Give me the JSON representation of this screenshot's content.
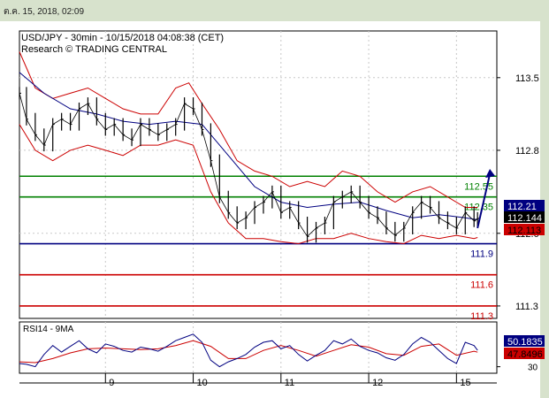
{
  "timestamp_bar": "ต.ค. 15, 2018, 02:09",
  "header": {
    "line1": "USD/JPY - 30min - 10/15/2018 04:08:38 (CET)",
    "line2": "Research © TRADING CENTRAL"
  },
  "chart_data": [
    {
      "type": "line",
      "panel": "price",
      "instrument": "USD/JPY",
      "timeframe": "30min",
      "y_ticks": [
        113.5,
        112.8,
        112.0,
        111.3
      ],
      "y_tick_labels": [
        "113.5",
        "112.8",
        "112.0",
        "111.3"
      ],
      "ylim": [
        111.18,
        113.95
      ],
      "x_tick_labels": [
        "9",
        "10",
        "11",
        "12",
        "15"
      ],
      "x_ticks_day": [
        8.5,
        9.5,
        10.5,
        11.5,
        12.5
      ],
      "xlim_day": [
        7.52,
        12.96
      ],
      "grid": true,
      "levels": [
        {
          "value": 112.55,
          "label": "112.55",
          "color": "#008000"
        },
        {
          "value": 112.35,
          "label": "112.35",
          "color": "#008000"
        },
        {
          "value": 111.9,
          "label": "111.9",
          "color": "#000080"
        },
        {
          "value": 111.6,
          "label": "111.6",
          "color": "#cc0000"
        },
        {
          "value": 111.3,
          "label": "111.3",
          "color": "#cc0000"
        }
      ],
      "price_tags": [
        {
          "value": 112.21,
          "label": "112.21",
          "bg": "#000080",
          "fg": "#ffffff"
        },
        {
          "value": 112.144,
          "label": "112.144",
          "bg": "#000000",
          "fg": "#ffffff"
        },
        {
          "value": 112.113,
          "label": "112.113",
          "bg": "#cc0000",
          "fg": "#000000"
        }
      ],
      "forecast_arrow": {
        "from": [
          12.74,
          112.05
        ],
        "to": [
          12.88,
          112.62
        ],
        "color": "#000080"
      },
      "close_series": {
        "x": [
          7.52,
          7.6,
          7.7,
          7.8,
          7.9,
          8.0,
          8.1,
          8.2,
          8.3,
          8.4,
          8.5,
          8.6,
          8.7,
          8.8,
          8.9,
          9.0,
          9.1,
          9.2,
          9.3,
          9.4,
          9.5,
          9.6,
          9.7,
          9.8,
          9.9,
          10.0,
          10.1,
          10.2,
          10.3,
          10.4,
          10.5,
          10.6,
          10.7,
          10.8,
          10.9,
          11.0,
          11.1,
          11.2,
          11.3,
          11.4,
          11.5,
          11.6,
          11.7,
          11.8,
          11.9,
          12.0,
          12.1,
          12.2,
          12.3,
          12.4,
          12.5,
          12.6,
          12.7,
          12.74
        ],
        "y": [
          113.35,
          113.1,
          112.95,
          112.85,
          113.05,
          113.1,
          113.05,
          113.2,
          113.25,
          113.1,
          113.0,
          113.05,
          112.95,
          112.9,
          113.05,
          113.0,
          112.95,
          113.0,
          113.05,
          113.25,
          113.2,
          113.0,
          112.7,
          112.35,
          112.2,
          112.1,
          112.15,
          112.25,
          112.3,
          112.4,
          112.2,
          112.25,
          112.1,
          111.97,
          112.05,
          112.1,
          112.3,
          112.35,
          112.4,
          112.3,
          112.2,
          112.15,
          112.05,
          111.98,
          112.05,
          112.2,
          112.3,
          112.25,
          112.15,
          112.1,
          112.05,
          112.2,
          112.12,
          112.144
        ]
      },
      "moving_average": {
        "x": [
          7.52,
          7.8,
          8.1,
          8.4,
          8.7,
          9.0,
          9.3,
          9.6,
          9.9,
          10.2,
          10.5,
          10.8,
          11.1,
          11.4,
          11.7,
          12.0,
          12.3,
          12.6,
          12.74
        ],
        "y": [
          113.55,
          113.35,
          113.2,
          113.15,
          113.08,
          113.05,
          113.08,
          113.05,
          112.75,
          112.45,
          112.3,
          112.25,
          112.28,
          112.3,
          112.22,
          112.15,
          112.18,
          112.15,
          112.13
        ]
      },
      "bollinger_upper": {
        "x": [
          7.52,
          7.7,
          7.9,
          8.1,
          8.3,
          8.5,
          8.7,
          8.9,
          9.1,
          9.3,
          9.45,
          9.6,
          9.8,
          10.0,
          10.2,
          10.4,
          10.6,
          10.8,
          11.0,
          11.2,
          11.4,
          11.6,
          11.8,
          12.0,
          12.2,
          12.4,
          12.6,
          12.74
        ],
        "y": [
          113.75,
          113.4,
          113.3,
          113.35,
          113.4,
          113.3,
          113.2,
          113.15,
          113.15,
          113.4,
          113.45,
          113.25,
          113.0,
          112.7,
          112.6,
          112.55,
          112.45,
          112.5,
          112.45,
          112.6,
          112.55,
          112.4,
          112.3,
          112.4,
          112.45,
          112.35,
          112.25,
          112.25
        ]
      },
      "bollinger_lower": {
        "x": [
          7.52,
          7.7,
          7.9,
          8.1,
          8.3,
          8.5,
          8.7,
          8.9,
          9.1,
          9.3,
          9.5,
          9.7,
          9.9,
          10.1,
          10.3,
          10.5,
          10.7,
          10.9,
          11.1,
          11.3,
          11.5,
          11.7,
          11.9,
          12.1,
          12.3,
          12.5,
          12.7,
          12.74
        ],
        "y": [
          113.05,
          112.8,
          112.7,
          112.8,
          112.85,
          112.8,
          112.75,
          112.85,
          112.85,
          112.9,
          112.85,
          112.4,
          112.1,
          111.95,
          111.95,
          111.92,
          111.9,
          111.95,
          111.95,
          112.0,
          111.95,
          111.92,
          111.9,
          111.98,
          111.95,
          111.98,
          111.95,
          111.96
        ]
      }
    },
    {
      "type": "line",
      "panel": "indicator",
      "title": "RSI14 - 9MA",
      "y_tick_labels": [
        "30"
      ],
      "y_ticks": [
        30
      ],
      "ylim": [
        22,
        85
      ],
      "tags": [
        {
          "value": 50.1835,
          "label": "50.1835",
          "bg": "#000080",
          "fg": "#ffffff"
        },
        {
          "value": 47.8496,
          "label": "47.8496",
          "bg": "#cc0000",
          "fg": "#000000"
        }
      ],
      "rsi": {
        "x": [
          7.52,
          7.6,
          7.7,
          7.8,
          7.9,
          8.0,
          8.1,
          8.2,
          8.3,
          8.4,
          8.5,
          8.6,
          8.7,
          8.8,
          8.9,
          9.0,
          9.1,
          9.2,
          9.3,
          9.4,
          9.5,
          9.6,
          9.7,
          9.8,
          9.9,
          10.0,
          10.1,
          10.2,
          10.3,
          10.4,
          10.5,
          10.6,
          10.7,
          10.8,
          10.9,
          11.0,
          11.1,
          11.2,
          11.3,
          11.4,
          11.5,
          11.6,
          11.7,
          11.8,
          11.9,
          12.0,
          12.1,
          12.2,
          12.3,
          12.4,
          12.5,
          12.6,
          12.7,
          12.74
        ],
        "y": [
          34,
          33,
          30,
          45,
          56,
          48,
          55,
          62,
          52,
          47,
          58,
          55,
          50,
          48,
          54,
          52,
          49,
          55,
          62,
          66,
          70,
          60,
          38,
          30,
          36,
          40,
          45,
          54,
          60,
          62,
          52,
          56,
          45,
          37,
          44,
          50,
          62,
          58,
          64,
          55,
          50,
          47,
          41,
          38,
          45,
          58,
          66,
          60,
          50,
          40,
          34,
          60,
          56,
          50.18
        ]
      },
      "ma": {
        "x": [
          7.52,
          7.7,
          7.9,
          8.1,
          8.3,
          8.5,
          8.7,
          8.9,
          9.1,
          9.3,
          9.5,
          9.7,
          9.9,
          10.1,
          10.3,
          10.5,
          10.7,
          10.9,
          11.1,
          11.3,
          11.5,
          11.7,
          11.9,
          12.1,
          12.3,
          12.5,
          12.7,
          12.74
        ],
        "y": [
          36,
          35,
          40,
          47,
          52,
          53,
          52,
          51,
          52,
          56,
          62,
          55,
          40,
          40,
          50,
          56,
          50,
          43,
          50,
          57,
          54,
          46,
          44,
          55,
          58,
          44,
          49,
          47.85
        ]
      }
    }
  ]
}
